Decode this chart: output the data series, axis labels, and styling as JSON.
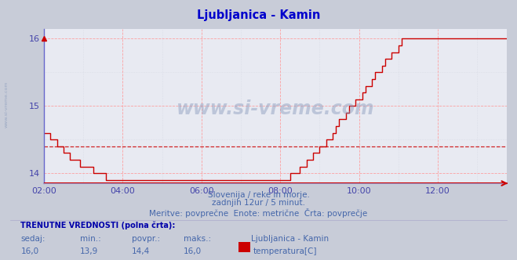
{
  "title": "Ljubljanica - Kamin",
  "title_color": "#0000cc",
  "bg_color": "#c8ccd8",
  "plot_bg_color": "#e8eaf2",
  "grid_color_major": "#ff9999",
  "grid_color_minor": "#c8ccd8",
  "line_color": "#cc0000",
  "avg_line_color": "#cc0000",
  "avg_value": 14.4,
  "x_tick_hours": [
    2,
    4,
    6,
    8,
    10,
    12
  ],
  "x_tick_labels": [
    "02:00",
    "04:00",
    "06:00",
    "08:00",
    "10:00",
    "12:00"
  ],
  "ylim": [
    13.85,
    16.15
  ],
  "yticks": [
    14,
    15,
    16
  ],
  "y_axis_color": "#4444aa",
  "x_axis_color": "#cc0000",
  "footer_lines": [
    "Slovenija / reke in morje.",
    "zadnjih 12ur / 5 minut.",
    "Meritve: povprečne  Enote: metrične  Črta: povprečje"
  ],
  "footer_color": "#4466aa",
  "watermark": "www.si-vreme.com",
  "watermark_color": "#8899bb",
  "label_TRENUTNE": "TRENUTNE VREDNOSTI (polna črta):",
  "label_cols": [
    "sedaj:",
    "min.:",
    "povpr.:",
    "maks.:"
  ],
  "label_vals": [
    "16,0",
    "13,9",
    "14,4",
    "16,0"
  ],
  "legend_name": "Ljubljanica - Kamin",
  "legend_label": "temperatura[C]",
  "legend_color": "#cc0000",
  "sidebar_text": "www.si-vreme.com",
  "sidebar_color": "#8899bb",
  "temperature_data": [
    14.6,
    14.6,
    14.5,
    14.5,
    14.4,
    14.4,
    14.3,
    14.3,
    14.2,
    14.2,
    14.2,
    14.1,
    14.1,
    14.1,
    14.1,
    14.0,
    14.0,
    14.0,
    14.0,
    13.9,
    13.9,
    13.9,
    13.9,
    13.9,
    13.9,
    13.9,
    13.9,
    13.9,
    13.9,
    13.9,
    13.9,
    13.9,
    13.9,
    13.9,
    13.9,
    13.9,
    13.9,
    13.9,
    13.9,
    13.9,
    13.9,
    13.9,
    13.9,
    13.9,
    13.9,
    13.9,
    13.9,
    13.9,
    13.9,
    13.9,
    13.9,
    13.9,
    13.9,
    13.9,
    13.9,
    13.9,
    13.9,
    13.9,
    13.9,
    13.9,
    13.9,
    13.9,
    13.9,
    13.9,
    13.9,
    13.9,
    13.9,
    13.9,
    13.9,
    13.9,
    13.9,
    13.9,
    13.9,
    13.9,
    13.9,
    14.0,
    14.0,
    14.0,
    14.1,
    14.1,
    14.2,
    14.2,
    14.3,
    14.3,
    14.4,
    14.4,
    14.5,
    14.5,
    14.6,
    14.7,
    14.8,
    14.8,
    14.9,
    15.0,
    15.0,
    15.1,
    15.1,
    15.2,
    15.3,
    15.3,
    15.4,
    15.5,
    15.5,
    15.6,
    15.7,
    15.7,
    15.8,
    15.8,
    15.9,
    16.0,
    16.0,
    16.0,
    16.0,
    16.0,
    16.0,
    16.0,
    16.0,
    16.0,
    16.0,
    16.0,
    16.0,
    16.0,
    16.0,
    16.0,
    16.0,
    16.0,
    16.0,
    16.0,
    16.0,
    16.0,
    16.0,
    16.0,
    16.0,
    16.0,
    16.0,
    16.0,
    16.0,
    16.0,
    16.0,
    16.0,
    16.0,
    16.0,
    16.0,
    16.0
  ]
}
